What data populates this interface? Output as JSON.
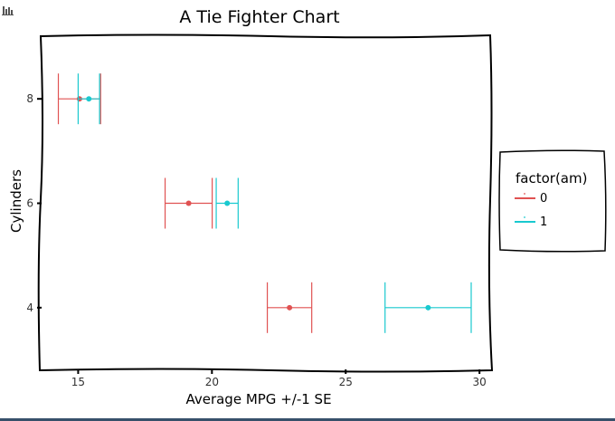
{
  "toolbar": {
    "icon": "bar-chart-icon"
  },
  "chart_data": {
    "type": "scatter",
    "title": "A Tie Fighter Chart",
    "xlabel": "Average MPG +/-1 SE",
    "ylabel": "Cylinders",
    "xlim": [
      13.6,
      30.4
    ],
    "ylim": [
      2.8,
      9.2
    ],
    "x_ticks": [
      15,
      20,
      25,
      30
    ],
    "y_ticks": [
      4,
      6,
      8
    ],
    "grid": false,
    "legend": {
      "title": "factor(am)",
      "position": "right"
    },
    "series": [
      {
        "name": "0",
        "color": "#e05252",
        "points": [
          {
            "y": 8,
            "x": 15.05,
            "xmin": 14.26,
            "xmax": 15.84
          },
          {
            "y": 6,
            "x": 19.13,
            "xmin": 18.25,
            "xmax": 20.01
          },
          {
            "y": 4,
            "x": 22.9,
            "xmin": 22.07,
            "xmax": 23.73
          }
        ]
      },
      {
        "name": "1",
        "color": "#19c9cf",
        "points": [
          {
            "y": 8,
            "x": 15.4,
            "xmin": 15.0,
            "xmax": 15.8
          },
          {
            "y": 6,
            "x": 20.57,
            "xmin": 20.16,
            "xmax": 20.98
          },
          {
            "y": 4,
            "x": 28.08,
            "xmin": 26.47,
            "xmax": 29.69
          }
        ]
      }
    ]
  }
}
